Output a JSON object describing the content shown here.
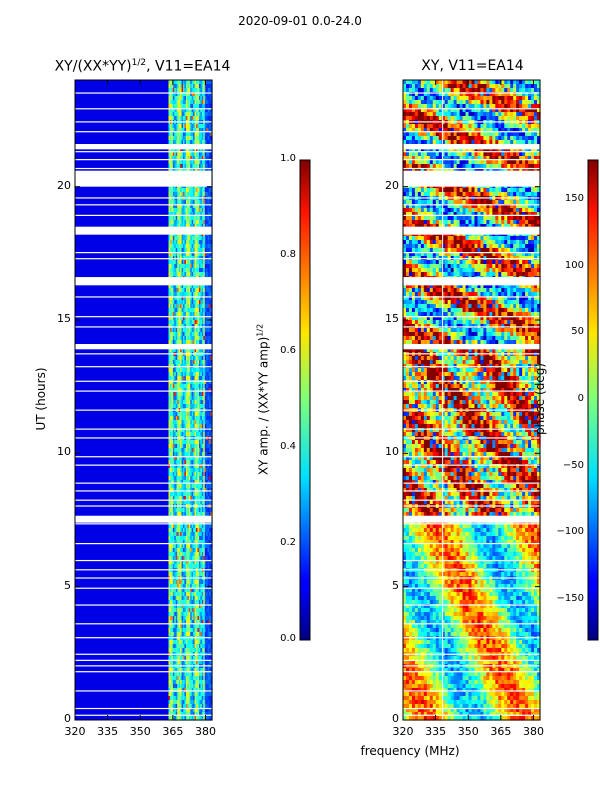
{
  "suptitle": "2020-09-01 0.0-24.0",
  "chart_data": [
    {
      "type": "heatmap",
      "title_main": "XY/(XX*YY)",
      "title_sup": "1/2",
      "title_rest": ", V11=EA14",
      "xlabel": "",
      "ylabel": "UT (hours)",
      "x_ticks": [
        320,
        335,
        350,
        365,
        380
      ],
      "y_ticks": [
        0,
        5,
        10,
        15,
        20
      ],
      "xlim": [
        320,
        383
      ],
      "ylim": [
        0,
        24
      ],
      "colorbar": {
        "label_main": "XY amp. / (XX*YY amp)",
        "label_sup": "1/2",
        "ticks": [
          "0.0",
          "0.2",
          "0.4",
          "0.6",
          "0.8",
          "1.0"
        ],
        "range": [
          0,
          1
        ],
        "colormap": "jet"
      }
    },
    {
      "type": "heatmap",
      "title": "XY, V11=EA14",
      "xlabel": "frequency (MHz)",
      "ylabel": "",
      "x_ticks": [
        320,
        335,
        350,
        365,
        380
      ],
      "y_ticks": [
        0,
        5,
        10,
        15,
        20
      ],
      "xlim": [
        320,
        383
      ],
      "ylim": [
        0,
        24
      ],
      "colorbar": {
        "label": "phase (deg)",
        "ticks": [
          "150",
          "100",
          "50",
          "0",
          "−50",
          "−100",
          "−150"
        ],
        "tick_values": [
          150,
          100,
          50,
          0,
          -50,
          -100,
          -150
        ],
        "range": [
          -180,
          180
        ],
        "colormap": "jet"
      }
    }
  ]
}
